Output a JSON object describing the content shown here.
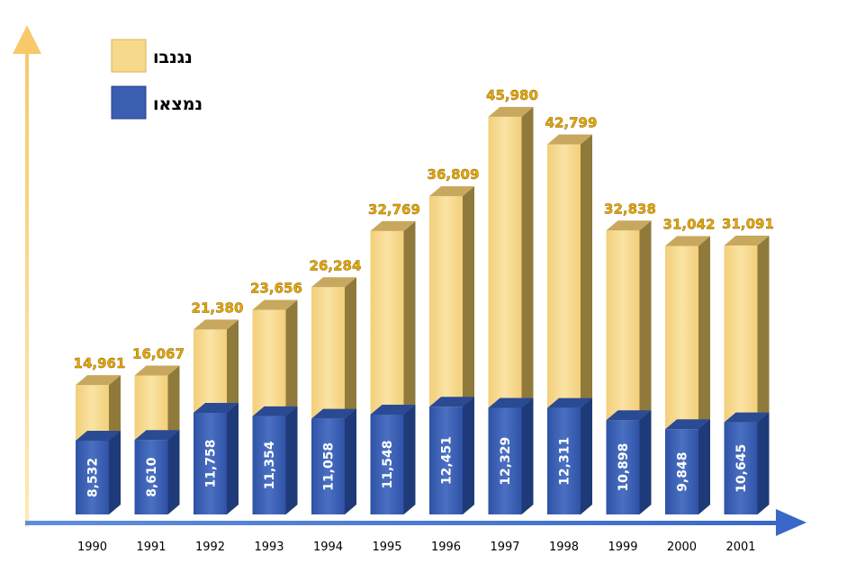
{
  "chart_data": {
    "type": "bar",
    "subtype": "stacked-3d",
    "categories": [
      "1990",
      "1991",
      "1992",
      "1993",
      "1994",
      "1995",
      "1996",
      "1997",
      "1998",
      "1999",
      "2000",
      "2001"
    ],
    "series": [
      {
        "name": "נמצאו",
        "color": "#3a5fb0",
        "values": [
          8532,
          8610,
          11758,
          11354,
          11058,
          11548,
          12451,
          12329,
          12311,
          10898,
          9848,
          10645
        ],
        "labels": [
          "8,532",
          "8,610",
          "11,758",
          "11,354",
          "11,058",
          "11,548",
          "12,451",
          "12,329",
          "12,311",
          "10,898",
          "9,848",
          "10,645"
        ]
      },
      {
        "name": "נגנבו",
        "color": "#f7d98c",
        "values": [
          14961,
          16067,
          21380,
          23656,
          26284,
          32769,
          36809,
          45980,
          42799,
          32838,
          31042,
          31091
        ],
        "labels": [
          "14,961",
          "16,067",
          "21,380",
          "23,656",
          "26,284",
          "32,769",
          "36,809",
          "45,980",
          "42,799",
          "32,838",
          "31,042",
          "31,091"
        ]
      }
    ],
    "stacking": "overlay",
    "ylim": [
      0,
      52000
    ],
    "legend": "top-left",
    "grid": false,
    "value_label_color": "#e8a800",
    "axis_color": "#4a7fd6"
  }
}
